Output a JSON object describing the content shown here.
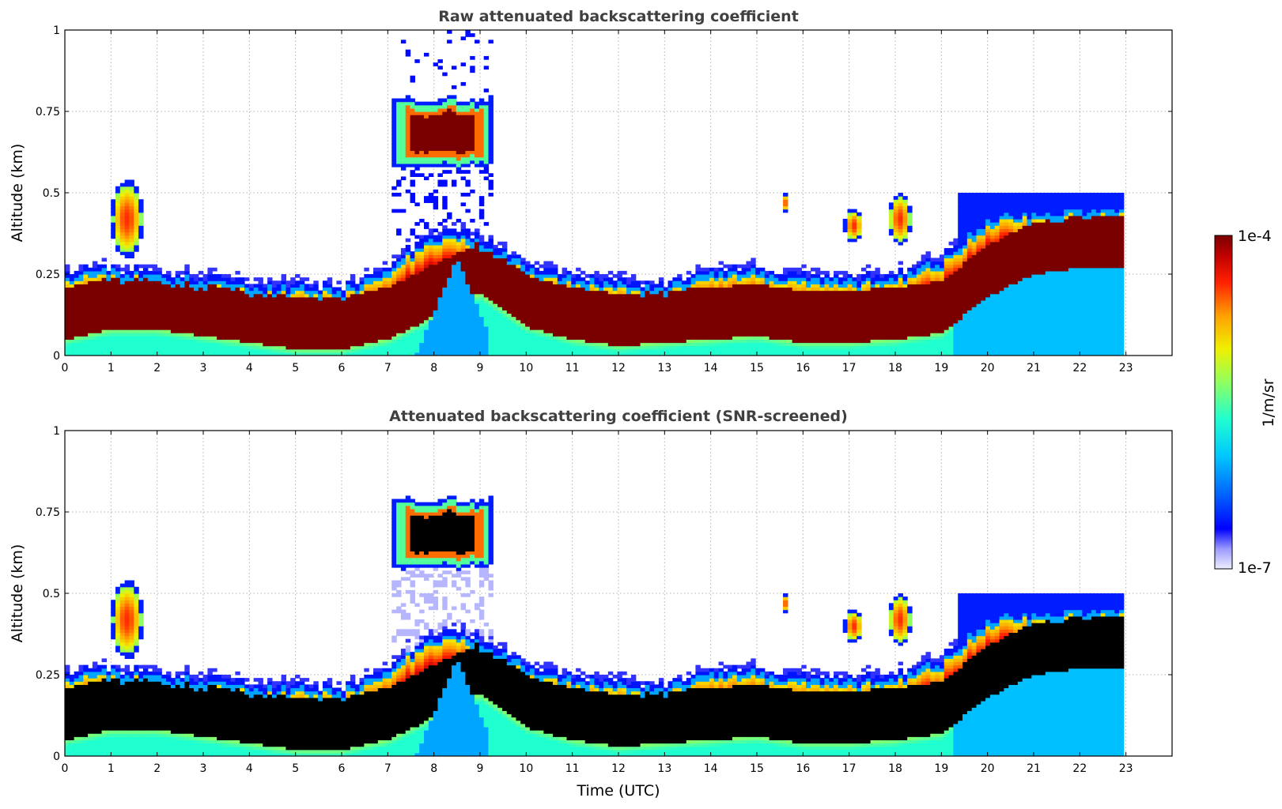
{
  "chart_data": [
    {
      "type": "heatmap",
      "title": "Raw attenuated backscattering coefficient",
      "ylabel": "Altitude (km)",
      "xlabel": "",
      "xlim": [
        0,
        24
      ],
      "ylim": [
        0,
        1
      ],
      "x_ticks": [
        "0",
        "1",
        "2",
        "3",
        "4",
        "5",
        "6",
        "7",
        "8",
        "9",
        "10",
        "11",
        "12",
        "13",
        "14",
        "15",
        "16",
        "17",
        "18",
        "19",
        "20",
        "21",
        "22",
        "23"
      ],
      "y_ticks": [
        "0",
        "0.25",
        "0.5",
        "0.75",
        "1"
      ],
      "y_tick_values": [
        0,
        0.25,
        0.5,
        0.75,
        1
      ],
      "grid": true,
      "data_end_time": 22.95,
      "features": [
        {
          "name": "boundary layer",
          "kind": "layer",
          "top": [
            [
              0,
              0.26
            ],
            [
              1,
              0.27
            ],
            [
              2,
              0.26
            ],
            [
              3,
              0.24
            ],
            [
              4,
              0.22
            ],
            [
              5,
              0.22
            ],
            [
              6,
              0.21
            ],
            [
              7,
              0.28
            ],
            [
              8,
              0.38
            ],
            [
              9,
              0.37
            ],
            [
              10,
              0.28
            ],
            [
              11,
              0.25
            ],
            [
              12,
              0.23
            ],
            [
              13,
              0.22
            ],
            [
              14,
              0.27
            ],
            [
              15,
              0.27
            ],
            [
              16,
              0.25
            ],
            [
              17,
              0.24
            ],
            [
              18,
              0.25
            ],
            [
              19,
              0.3
            ],
            [
              20,
              0.43
            ],
            [
              21,
              0.45
            ],
            [
              22,
              0.46
            ],
            [
              22.95,
              0.47
            ]
          ],
          "core": [
            [
              0,
              0.13
            ],
            [
              1,
              0.16
            ],
            [
              2,
              0.16
            ],
            [
              3,
              0.14
            ],
            [
              4,
              0.12
            ],
            [
              5,
              0.1
            ],
            [
              6,
              0.1
            ],
            [
              7,
              0.13
            ],
            [
              8,
              0.2
            ],
            [
              9,
              0.27
            ],
            [
              10,
              0.17
            ],
            [
              11,
              0.13
            ],
            [
              12,
              0.11
            ],
            [
              13,
              0.12
            ],
            [
              14,
              0.13
            ],
            [
              15,
              0.14
            ],
            [
              16,
              0.12
            ],
            [
              17,
              0.12
            ],
            [
              18,
              0.13
            ],
            [
              19,
              0.15
            ],
            [
              20,
              0.26
            ],
            [
              21,
              0.33
            ],
            [
              22,
              0.35
            ],
            [
              22.95,
              0.35
            ]
          ]
        },
        {
          "name": "elevated layer",
          "kind": "blob",
          "t0": 7.1,
          "t1": 9.3,
          "z0": 0.58,
          "z1": 0.8
        },
        {
          "name": "convective plume",
          "kind": "plume",
          "t0": 7.4,
          "t1": 9.2,
          "z_top": 0.3
        }
      ],
      "colormap": "jet",
      "screened": false
    },
    {
      "type": "heatmap",
      "title": "Attenuated backscattering coefficient (SNR-screened)",
      "ylabel": "Altitude (km)",
      "xlabel": "Time (UTC)",
      "xlim": [
        0,
        24
      ],
      "ylim": [
        0,
        1
      ],
      "x_ticks": [
        "0",
        "1",
        "2",
        "3",
        "4",
        "5",
        "6",
        "7",
        "8",
        "9",
        "10",
        "11",
        "12",
        "13",
        "14",
        "15",
        "16",
        "17",
        "18",
        "19",
        "20",
        "21",
        "22",
        "23"
      ],
      "y_ticks": [
        "0",
        "0.25",
        "0.5",
        "0.75",
        "1"
      ],
      "y_tick_values": [
        0,
        0.25,
        0.5,
        0.75,
        1
      ],
      "grid": true,
      "data_end_time": 22.95,
      "colormap": "jet",
      "screened": true,
      "saturated_color": "#000000"
    }
  ],
  "colorbar": {
    "min_label": "1e-7",
    "max_label": "1e-4",
    "label": "1/m/sr",
    "colors": [
      "#e8e8ff",
      "#b4b4ff",
      "#6e6eff",
      "#0000ff",
      "#0064ff",
      "#00b4ff",
      "#00f0e0",
      "#50ff90",
      "#b4ff46",
      "#f0f000",
      "#ffa000",
      "#ff3000",
      "#c80000",
      "#7d0000"
    ]
  }
}
